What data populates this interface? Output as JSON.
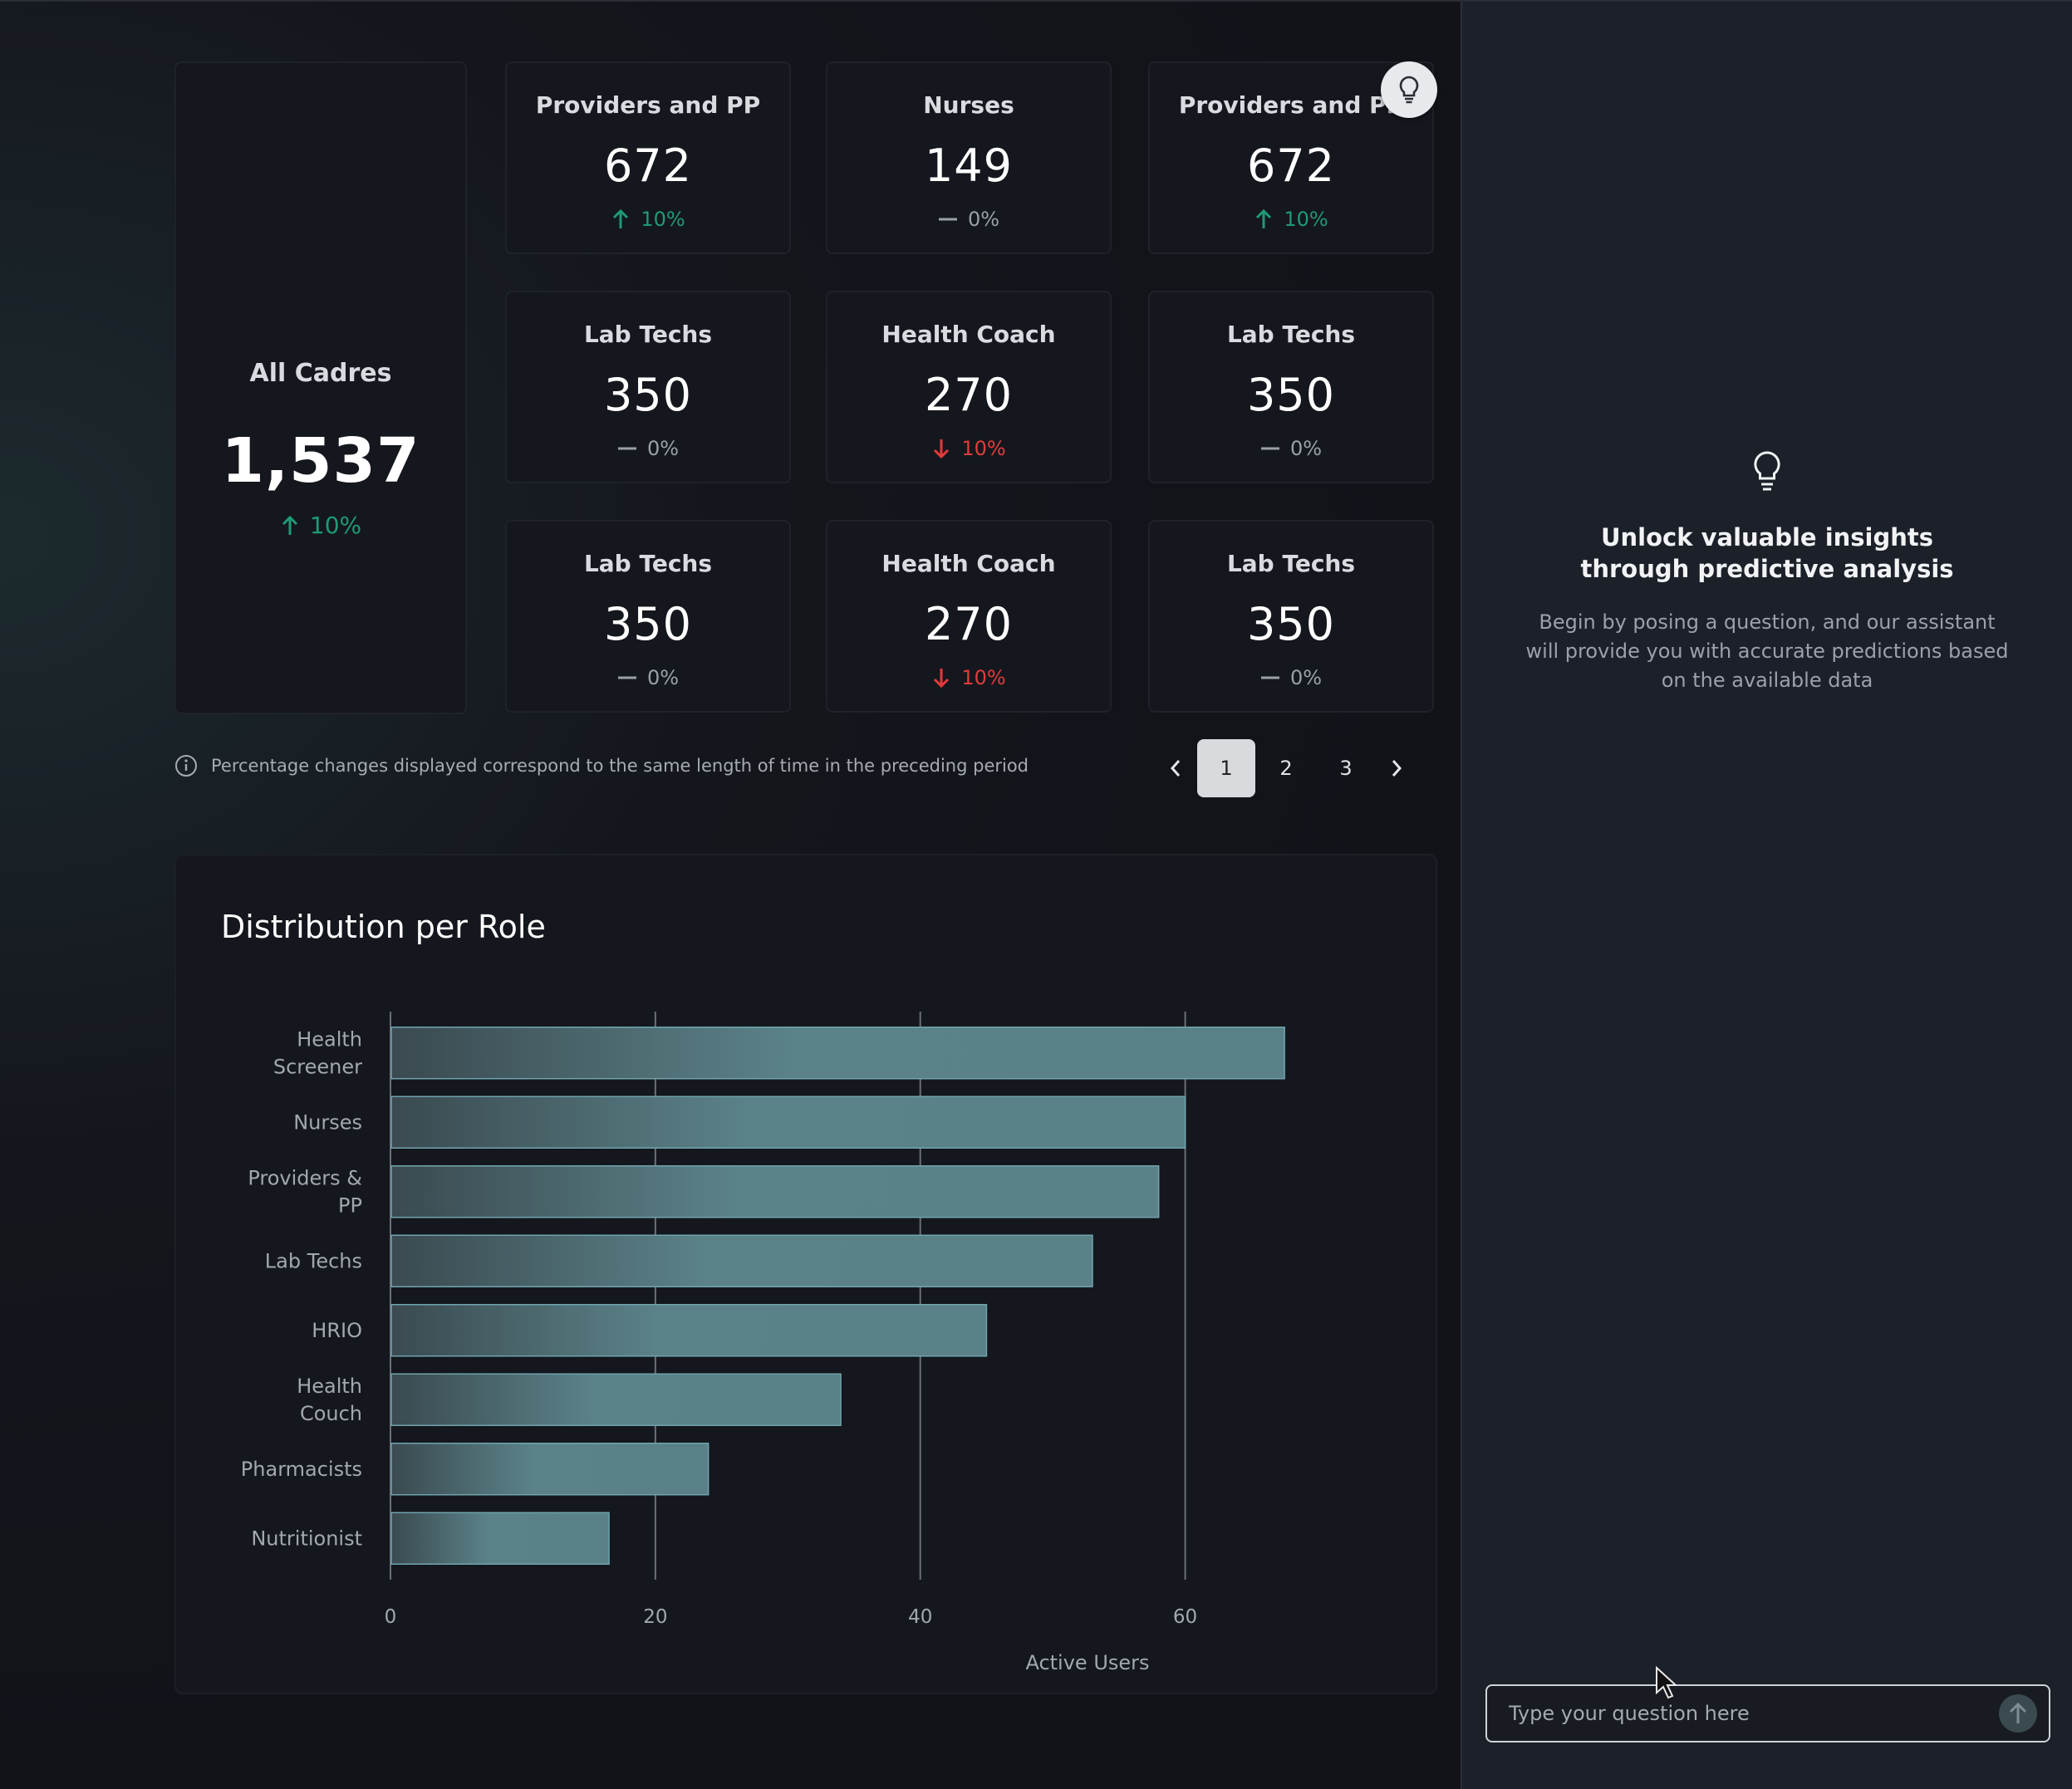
{
  "summary": {
    "label": "All Cadres",
    "value": "1,537",
    "change": "10%",
    "direction": "up"
  },
  "cards": [
    {
      "label": "Providers and PP",
      "value": "672",
      "change": "10%",
      "direction": "up"
    },
    {
      "label": "Nurses",
      "value": "149",
      "change": "0%",
      "direction": "flat"
    },
    {
      "label": "Providers and PP",
      "value": "672",
      "change": "10%",
      "direction": "up"
    },
    {
      "label": "Lab Techs",
      "value": "350",
      "change": "0%",
      "direction": "flat"
    },
    {
      "label": "Health Coach",
      "value": "270",
      "change": "10%",
      "direction": "down"
    },
    {
      "label": "Lab Techs",
      "value": "350",
      "change": "0%",
      "direction": "flat"
    },
    {
      "label": "Lab Techs",
      "value": "350",
      "change": "0%",
      "direction": "flat"
    },
    {
      "label": "Health Coach",
      "value": "270",
      "change": "10%",
      "direction": "down"
    },
    {
      "label": "Lab Techs",
      "value": "350",
      "change": "0%",
      "direction": "flat"
    }
  ],
  "footnote": "Percentage changes displayed correspond to the same length of time in the preceding period",
  "pagination": {
    "pages": [
      "1",
      "2",
      "3"
    ],
    "active": "1"
  },
  "colors": {
    "up": "#1f9a75",
    "down": "#e23b3b",
    "flat": "#9aa0a8",
    "bar": "#5a8088"
  },
  "chart_data": {
    "type": "bar",
    "orientation": "horizontal",
    "title": "Distribution per Role",
    "xlabel": "Active Users",
    "ylabel": "",
    "xlim": [
      0,
      70
    ],
    "xticks": [
      0,
      20,
      40,
      60
    ],
    "categories": [
      [
        "Health",
        "Screener"
      ],
      [
        "Nurses"
      ],
      [
        "Providers &",
        "PP"
      ],
      [
        "Lab Techs"
      ],
      [
        "HRIO"
      ],
      [
        "Health",
        "Couch"
      ],
      [
        "Pharmacists"
      ],
      [
        "Nutritionist"
      ]
    ],
    "values": [
      67.5,
      60,
      58,
      53,
      45,
      34,
      24,
      16.5
    ]
  },
  "assistant": {
    "heading": "Unlock valuable insights through predictive analysis",
    "body": "Begin by posing a question, and our assistant will provide you with accurate predictions based on the available data",
    "input_placeholder": "Type your question here"
  }
}
